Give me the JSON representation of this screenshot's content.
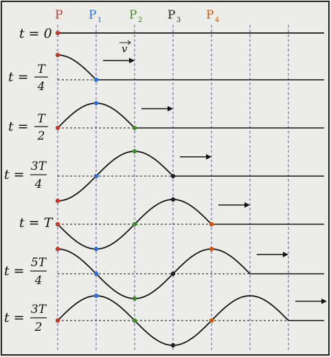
{
  "points": [
    {
      "name": "P",
      "sub": "",
      "color": "#c0392b"
    },
    {
      "name": "P",
      "sub": "1",
      "color": "#2e6fd8"
    },
    {
      "name": "P",
      "sub": "2",
      "color": "#3f8a2a"
    },
    {
      "name": "P",
      "sub": "3",
      "color": "#222222"
    },
    {
      "name": "P",
      "sub": "4",
      "color": "#d35400"
    }
  ],
  "rows": [
    {
      "label_text": "t = 0",
      "frac": null,
      "front": 0
    },
    {
      "label_text": "t = ",
      "frac": {
        "num": "T",
        "den": "4"
      },
      "front": 1
    },
    {
      "label_text": "t = ",
      "frac": {
        "num": "T",
        "den": "2"
      },
      "front": 2
    },
    {
      "label_text": "t = ",
      "frac": {
        "num": "3T",
        "den": "4"
      },
      "front": 3
    },
    {
      "label_text": "t = T",
      "frac": null,
      "front": 4
    },
    {
      "label_text": "t = ",
      "frac": {
        "num": "5T",
        "den": "4"
      },
      "front": 5
    },
    {
      "label_text": "t = ",
      "frac": {
        "num": "3T",
        "den": "2"
      },
      "front": 6
    }
  ],
  "velocity_label": "v",
  "colors": {
    "wave": "#111111",
    "guide": "#5a5aa8",
    "frame": "#222222",
    "source": "#c0392b"
  }
}
